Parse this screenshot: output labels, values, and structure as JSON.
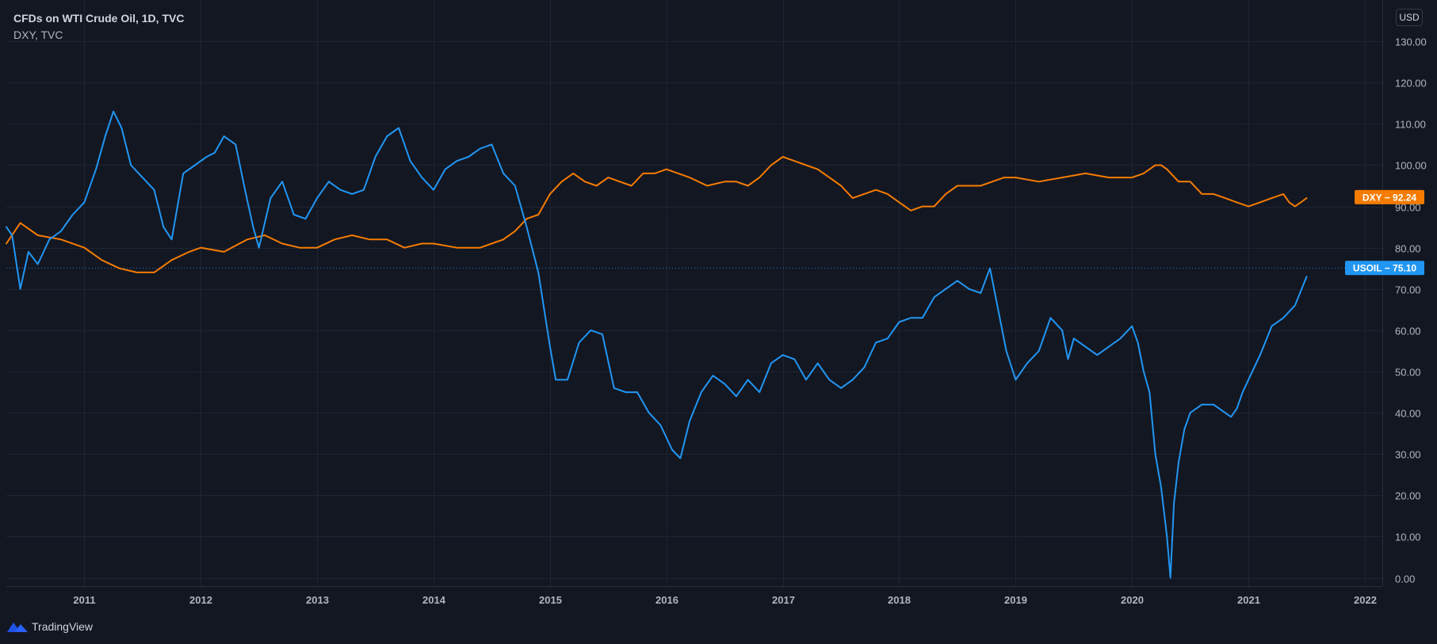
{
  "legend": {
    "main_title": "CFDs on WTI Crude Oil, 1D, TVC",
    "compare_title": "DXY, TVC"
  },
  "currency": "USD",
  "footer": {
    "brand": "TradingView"
  },
  "colors": {
    "background": "#131722",
    "grid": "#1f2433",
    "axis_text": "#b2b5be",
    "usoil": "#2196f3",
    "dxy": "#f57c00"
  },
  "chart_data": {
    "type": "line",
    "title": "CFDs on WTI Crude Oil, 1D, TVC",
    "xlabel": "",
    "ylabel": "",
    "xlim": [
      2010.33,
      2022.15
    ],
    "ylim": [
      -2,
      140
    ],
    "x_ticks": [
      2011,
      2012,
      2013,
      2014,
      2015,
      2016,
      2017,
      2018,
      2019,
      2020,
      2021,
      2022
    ],
    "x_tick_labels": [
      "2011",
      "2012",
      "2013",
      "2014",
      "2015",
      "2016",
      "2017",
      "2018",
      "2019",
      "2020",
      "2021",
      "2022"
    ],
    "y_ticks": [
      0,
      10,
      20,
      30,
      40,
      50,
      60,
      70,
      80,
      90,
      100,
      110,
      120,
      130
    ],
    "y_tick_labels": [
      "0.00",
      "10.00",
      "20.00",
      "30.00",
      "40.00",
      "50.00",
      "60.00",
      "70.00",
      "80.00",
      "90.00",
      "100.00",
      "110.00",
      "120.00",
      "130.00"
    ],
    "top_tick_label": "1",
    "grid": true,
    "series": [
      {
        "name": "USOIL",
        "label": "USOIL",
        "last_value": 75.1,
        "last_value_label": "75.10",
        "x": [
          2010.33,
          2010.38,
          2010.45,
          2010.52,
          2010.6,
          2010.7,
          2010.8,
          2010.9,
          2011.0,
          2011.1,
          2011.18,
          2011.25,
          2011.32,
          2011.4,
          2011.5,
          2011.6,
          2011.68,
          2011.75,
          2011.85,
          2011.95,
          2012.05,
          2012.12,
          2012.2,
          2012.3,
          2012.38,
          2012.45,
          2012.5,
          2012.6,
          2012.7,
          2012.8,
          2012.9,
          2013.0,
          2013.1,
          2013.2,
          2013.3,
          2013.4,
          2013.5,
          2013.6,
          2013.7,
          2013.8,
          2013.9,
          2014.0,
          2014.1,
          2014.2,
          2014.3,
          2014.4,
          2014.5,
          2014.6,
          2014.7,
          2014.8,
          2014.9,
          2015.0,
          2015.05,
          2015.15,
          2015.25,
          2015.35,
          2015.45,
          2015.55,
          2015.65,
          2015.75,
          2015.85,
          2015.95,
          2016.05,
          2016.12,
          2016.2,
          2016.3,
          2016.4,
          2016.5,
          2016.6,
          2016.7,
          2016.8,
          2016.9,
          2017.0,
          2017.1,
          2017.2,
          2017.3,
          2017.4,
          2017.5,
          2017.6,
          2017.7,
          2017.8,
          2017.9,
          2018.0,
          2018.1,
          2018.2,
          2018.3,
          2018.4,
          2018.5,
          2018.6,
          2018.7,
          2018.78,
          2018.85,
          2018.92,
          2019.0,
          2019.1,
          2019.2,
          2019.3,
          2019.4,
          2019.45,
          2019.5,
          2019.6,
          2019.7,
          2019.8,
          2019.9,
          2020.0,
          2020.05,
          2020.1,
          2020.15,
          2020.2,
          2020.25,
          2020.3,
          2020.33,
          2020.36,
          2020.4,
          2020.45,
          2020.5,
          2020.6,
          2020.7,
          2020.8,
          2020.85,
          2020.9,
          2020.95,
          2021.0,
          2021.1,
          2021.2,
          2021.3,
          2021.4,
          2021.5
        ],
        "y": [
          85,
          83,
          70,
          79,
          76,
          82,
          84,
          88,
          91,
          99,
          107,
          113,
          109,
          100,
          97,
          94,
          85,
          82,
          98,
          100,
          102,
          103,
          107,
          105,
          94,
          85,
          80,
          92,
          96,
          88,
          87,
          92,
          96,
          94,
          93,
          94,
          102,
          107,
          109,
          101,
          97,
          94,
          99,
          101,
          102,
          104,
          105,
          98,
          95,
          85,
          74,
          56,
          48,
          48,
          57,
          60,
          59,
          46,
          45,
          45,
          40,
          37,
          31,
          29,
          38,
          45,
          49,
          47,
          44,
          48,
          45,
          52,
          54,
          53,
          48,
          52,
          48,
          46,
          48,
          51,
          57,
          58,
          62,
          63,
          63,
          68,
          70,
          72,
          70,
          69,
          75,
          65,
          55,
          48,
          52,
          55,
          63,
          60,
          53,
          58,
          56,
          54,
          56,
          58,
          61,
          57,
          50,
          45,
          30,
          22,
          10,
          0,
          18,
          28,
          36,
          40,
          42,
          42,
          40,
          39,
          41,
          45,
          48,
          54,
          61,
          63,
          66,
          73
        ]
      },
      {
        "name": "DXY",
        "label": "DXY",
        "last_value": 92.24,
        "last_value_label": "92.24",
        "x": [
          2010.33,
          2010.45,
          2010.6,
          2010.8,
          2011.0,
          2011.15,
          2011.3,
          2011.45,
          2011.6,
          2011.75,
          2011.9,
          2012.0,
          2012.2,
          2012.4,
          2012.55,
          2012.7,
          2012.85,
          2013.0,
          2013.15,
          2013.3,
          2013.45,
          2013.6,
          2013.75,
          2013.9,
          2014.0,
          2014.2,
          2014.4,
          2014.5,
          2014.6,
          2014.7,
          2014.8,
          2014.9,
          2015.0,
          2015.1,
          2015.2,
          2015.3,
          2015.4,
          2015.5,
          2015.6,
          2015.7,
          2015.8,
          2015.9,
          2016.0,
          2016.2,
          2016.35,
          2016.5,
          2016.6,
          2016.7,
          2016.8,
          2016.9,
          2017.0,
          2017.1,
          2017.2,
          2017.3,
          2017.4,
          2017.5,
          2017.6,
          2017.7,
          2017.8,
          2017.9,
          2018.0,
          2018.1,
          2018.2,
          2018.3,
          2018.4,
          2018.5,
          2018.6,
          2018.7,
          2018.8,
          2018.9,
          2019.0,
          2019.2,
          2019.4,
          2019.6,
          2019.8,
          2020.0,
          2020.1,
          2020.15,
          2020.2,
          2020.25,
          2020.3,
          2020.4,
          2020.5,
          2020.6,
          2020.7,
          2020.8,
          2020.9,
          2021.0,
          2021.1,
          2021.2,
          2021.3,
          2021.35,
          2021.4,
          2021.45,
          2021.5
        ],
        "y": [
          81,
          86,
          83,
          82,
          80,
          77,
          75,
          74,
          74,
          77,
          79,
          80,
          79,
          82,
          83,
          81,
          80,
          80,
          82,
          83,
          82,
          82,
          80,
          81,
          81,
          80,
          80,
          81,
          82,
          84,
          87,
          88,
          93,
          96,
          98,
          96,
          95,
          97,
          96,
          95,
          98,
          98,
          99,
          97,
          95,
          96,
          96,
          95,
          97,
          100,
          102,
          101,
          100,
          99,
          97,
          95,
          92,
          93,
          94,
          93,
          91,
          89,
          90,
          90,
          93,
          95,
          95,
          95,
          96,
          97,
          97,
          96,
          97,
          98,
          97,
          97,
          98,
          99,
          100,
          100,
          99,
          96,
          96,
          93,
          93,
          92,
          91,
          90,
          91,
          92,
          93,
          91,
          90,
          91,
          92
        ]
      }
    ]
  }
}
